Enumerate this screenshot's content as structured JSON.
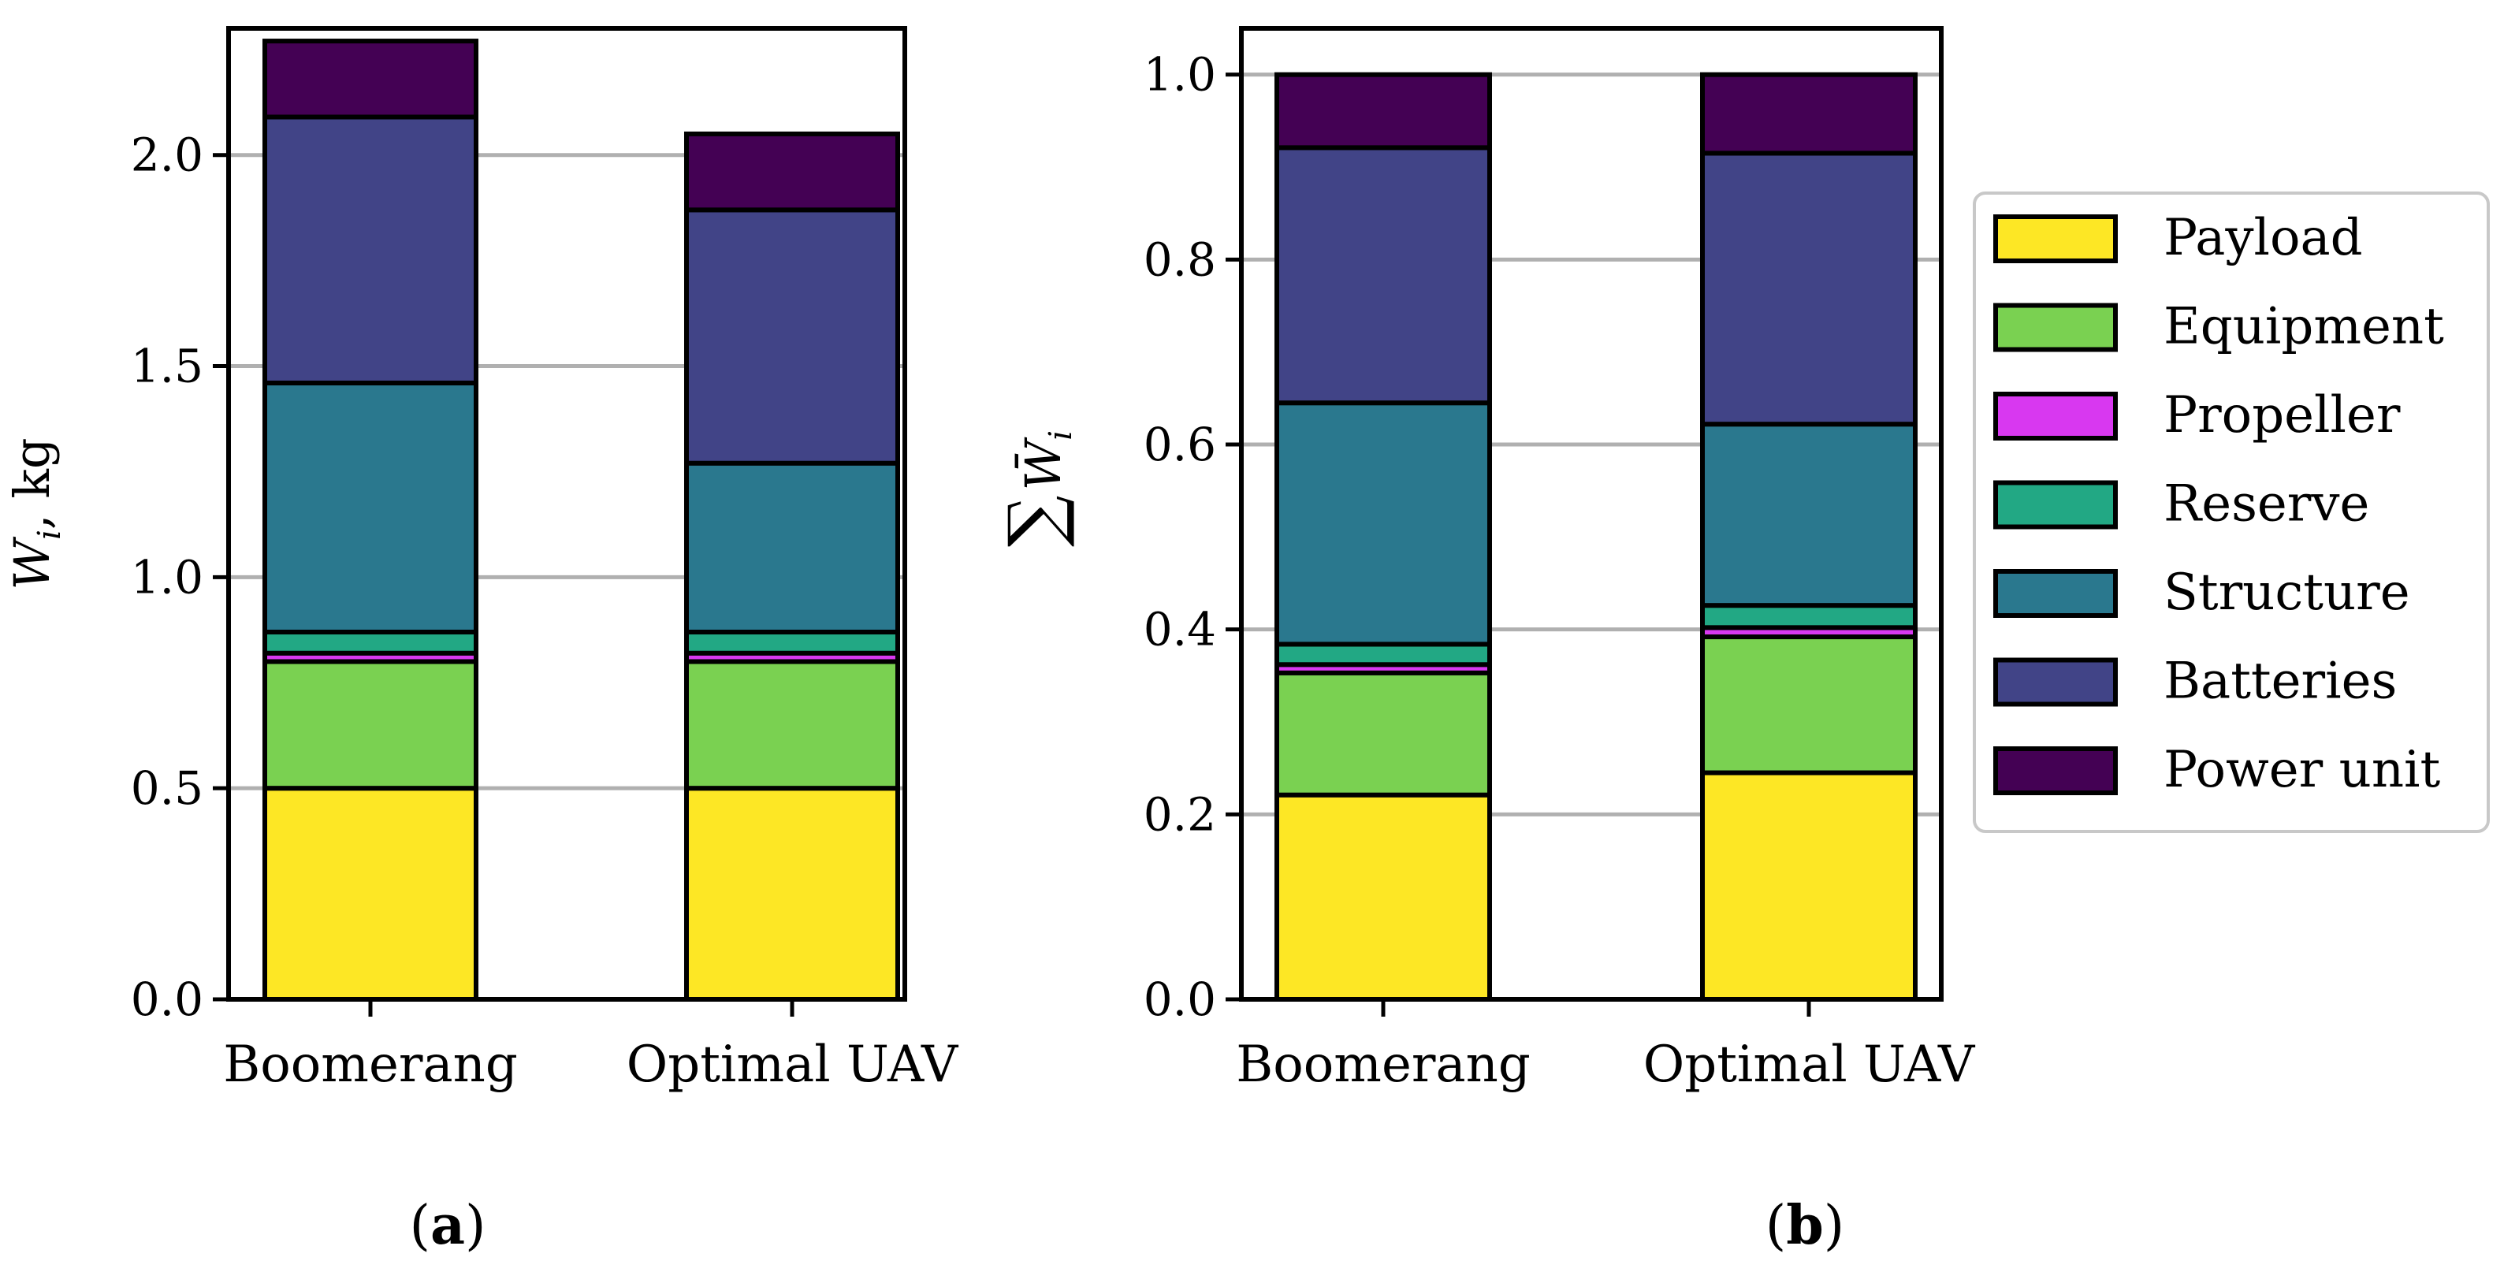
{
  "chart_data": [
    {
      "type": "bar",
      "stacked": true,
      "panel_label": "(a)",
      "ylabel": "W_i, kg",
      "categories": [
        "Boomerang",
        "Optimal UAV"
      ],
      "ylim": [
        0,
        2.3
      ],
      "yticks": [
        "0.0",
        "0.5",
        "1.0",
        "1.5",
        "2.0"
      ],
      "grid": "horizontal",
      "series": [
        {
          "name": "Payload",
          "color": "#fde725",
          "values": [
            0.5,
            0.5
          ]
        },
        {
          "name": "Equipment",
          "color": "#7ad151",
          "values": [
            0.3,
            0.3
          ]
        },
        {
          "name": "Propeller",
          "color": "#d838f0",
          "values": [
            0.02,
            0.02
          ]
        },
        {
          "name": "Reserve",
          "color": "#22a884",
          "values": [
            0.05,
            0.05
          ]
        },
        {
          "name": "Structure",
          "color": "#2a788e",
          "values": [
            0.59,
            0.4
          ]
        },
        {
          "name": "Batteries",
          "color": "#414487",
          "values": [
            0.63,
            0.6
          ]
        },
        {
          "name": "Power unit",
          "color": "#440154",
          "values": [
            0.18,
            0.18
          ]
        }
      ]
    },
    {
      "type": "bar",
      "stacked": true,
      "panel_label": "(b)",
      "ylabel": "∑W̄i",
      "categories": [
        "Boomerang",
        "Optimal UAV"
      ],
      "ylim": [
        0,
        1.05
      ],
      "yticks": [
        "0.0",
        "0.2",
        "0.4",
        "0.6",
        "0.8",
        "1.0"
      ],
      "grid": "horizontal",
      "legend": {
        "position": "right",
        "entries": [
          "Payload",
          "Equipment",
          "Propeller",
          "Reserve",
          "Structure",
          "Batteries",
          "Power unit"
        ]
      },
      "series": [
        {
          "name": "Payload",
          "color": "#fde725",
          "values": [
            0.221,
            0.245
          ]
        },
        {
          "name": "Equipment",
          "color": "#7ad151",
          "values": [
            0.132,
            0.147
          ]
        },
        {
          "name": "Propeller",
          "color": "#d838f0",
          "values": [
            0.009,
            0.01
          ]
        },
        {
          "name": "Reserve",
          "color": "#22a884",
          "values": [
            0.022,
            0.024
          ]
        },
        {
          "name": "Structure",
          "color": "#2a788e",
          "values": [
            0.261,
            0.196
          ]
        },
        {
          "name": "Batteries",
          "color": "#414487",
          "values": [
            0.276,
            0.293
          ]
        },
        {
          "name": "Power unit",
          "color": "#440154",
          "values": [
            0.079,
            0.085
          ]
        }
      ]
    }
  ]
}
